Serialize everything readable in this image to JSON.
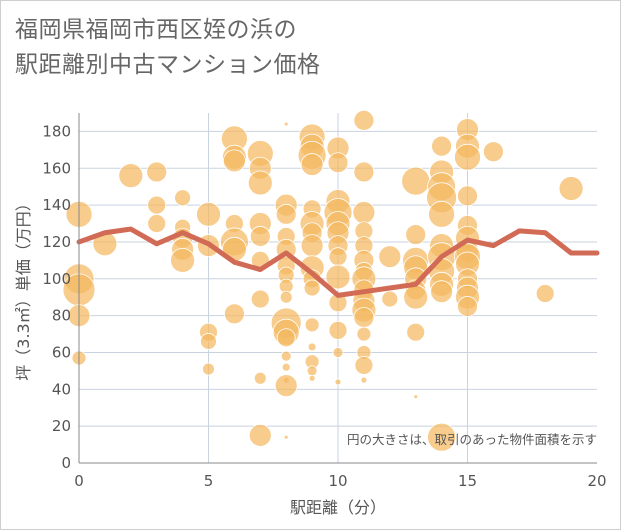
{
  "chart_data": {
    "type": "scatter",
    "title": "福岡県福岡市西区姪の浜の\n駅距離別中古マンション価格",
    "xlabel": "駅距離（分）",
    "ylabel": "坪（3.3㎡）単価（万円）",
    "xlim": [
      0,
      20
    ],
    "ylim": [
      0,
      190
    ],
    "xticks": [
      0,
      5,
      10,
      15,
      20
    ],
    "yticks": [
      0,
      20,
      40,
      60,
      80,
      100,
      120,
      140,
      160,
      180
    ],
    "grid": true,
    "annotation": "円の大きさは、取引のあった物件面積を示す",
    "colors": {
      "bubble": "#f4b95f",
      "line": "#d26b55",
      "grid": "#c9d3e0"
    },
    "trend_line": {
      "x": [
        0,
        1,
        2,
        3,
        4,
        5,
        6,
        7,
        8,
        9,
        10,
        11,
        12,
        13,
        14,
        15,
        16,
        17,
        18,
        19,
        20
      ],
      "y": [
        120,
        125,
        127,
        119,
        125,
        119,
        109,
        105,
        114,
        103,
        91,
        93,
        95,
        97,
        112,
        121,
        118,
        126,
        125,
        114,
        114
      ]
    },
    "points": [
      {
        "x": 0,
        "y": 135,
        "s": 13
      },
      {
        "x": 0,
        "y": 100,
        "s": 15
      },
      {
        "x": 0,
        "y": 94,
        "s": 16
      },
      {
        "x": 0,
        "y": 80,
        "s": 11
      },
      {
        "x": 0,
        "y": 57,
        "s": 7
      },
      {
        "x": 1,
        "y": 119,
        "s": 12
      },
      {
        "x": 2,
        "y": 156,
        "s": 12
      },
      {
        "x": 3,
        "y": 158,
        "s": 10
      },
      {
        "x": 3,
        "y": 140,
        "s": 9
      },
      {
        "x": 3,
        "y": 130,
        "s": 9
      },
      {
        "x": 4,
        "y": 144,
        "s": 8
      },
      {
        "x": 4,
        "y": 128,
        "s": 8
      },
      {
        "x": 4,
        "y": 122,
        "s": 10
      },
      {
        "x": 4,
        "y": 116,
        "s": 11
      },
      {
        "x": 4,
        "y": 110,
        "s": 12
      },
      {
        "x": 5,
        "y": 135,
        "s": 12
      },
      {
        "x": 5,
        "y": 118,
        "s": 11
      },
      {
        "x": 5,
        "y": 71,
        "s": 9
      },
      {
        "x": 5,
        "y": 66,
        "s": 8
      },
      {
        "x": 5,
        "y": 51,
        "s": 6
      },
      {
        "x": 6,
        "y": 176,
        "s": 13
      },
      {
        "x": 6,
        "y": 166,
        "s": 12
      },
      {
        "x": 6,
        "y": 164,
        "s": 11
      },
      {
        "x": 6,
        "y": 130,
        "s": 9
      },
      {
        "x": 6,
        "y": 120,
        "s": 14
      },
      {
        "x": 6,
        "y": 116,
        "s": 12
      },
      {
        "x": 6,
        "y": 81,
        "s": 10
      },
      {
        "x": 7,
        "y": 168,
        "s": 13
      },
      {
        "x": 7,
        "y": 160,
        "s": 11
      },
      {
        "x": 7,
        "y": 152,
        "s": 12
      },
      {
        "x": 7,
        "y": 130,
        "s": 11
      },
      {
        "x": 7,
        "y": 123,
        "s": 10
      },
      {
        "x": 7,
        "y": 110,
        "s": 9
      },
      {
        "x": 7,
        "y": 89,
        "s": 9
      },
      {
        "x": 7,
        "y": 46,
        "s": 6
      },
      {
        "x": 7,
        "y": 15,
        "s": 11
      },
      {
        "x": 8,
        "y": 184,
        "s": 2
      },
      {
        "x": 8,
        "y": 140,
        "s": 11
      },
      {
        "x": 8,
        "y": 135,
        "s": 10
      },
      {
        "x": 8,
        "y": 123,
        "s": 9
      },
      {
        "x": 8,
        "y": 116,
        "s": 10
      },
      {
        "x": 8,
        "y": 107,
        "s": 9
      },
      {
        "x": 8,
        "y": 102,
        "s": 8
      },
      {
        "x": 8,
        "y": 96,
        "s": 7
      },
      {
        "x": 8,
        "y": 90,
        "s": 6
      },
      {
        "x": 8,
        "y": 76,
        "s": 15
      },
      {
        "x": 8,
        "y": 71,
        "s": 13
      },
      {
        "x": 8,
        "y": 68,
        "s": 9
      },
      {
        "x": 8,
        "y": 58,
        "s": 5
      },
      {
        "x": 8,
        "y": 52,
        "s": 4
      },
      {
        "x": 8,
        "y": 45,
        "s": 3
      },
      {
        "x": 8,
        "y": 42,
        "s": 11
      },
      {
        "x": 8,
        "y": 14,
        "s": 2
      },
      {
        "x": 9,
        "y": 177,
        "s": 13
      },
      {
        "x": 9,
        "y": 172,
        "s": 12
      },
      {
        "x": 9,
        "y": 167,
        "s": 14
      },
      {
        "x": 9,
        "y": 162,
        "s": 11
      },
      {
        "x": 9,
        "y": 138,
        "s": 9
      },
      {
        "x": 9,
        "y": 130,
        "s": 12
      },
      {
        "x": 9,
        "y": 125,
        "s": 10
      },
      {
        "x": 9,
        "y": 118,
        "s": 11
      },
      {
        "x": 9,
        "y": 106,
        "s": 12
      },
      {
        "x": 9,
        "y": 100,
        "s": 9
      },
      {
        "x": 9,
        "y": 95,
        "s": 8
      },
      {
        "x": 9,
        "y": 75,
        "s": 7
      },
      {
        "x": 9,
        "y": 63,
        "s": 4
      },
      {
        "x": 9,
        "y": 55,
        "s": 7
      },
      {
        "x": 9,
        "y": 50,
        "s": 5
      },
      {
        "x": 9,
        "y": 46,
        "s": 3
      },
      {
        "x": 10,
        "y": 171,
        "s": 11
      },
      {
        "x": 10,
        "y": 163,
        "s": 10
      },
      {
        "x": 10,
        "y": 142,
        "s": 12
      },
      {
        "x": 10,
        "y": 136,
        "s": 14
      },
      {
        "x": 10,
        "y": 130,
        "s": 12
      },
      {
        "x": 10,
        "y": 125,
        "s": 11
      },
      {
        "x": 10,
        "y": 118,
        "s": 10
      },
      {
        "x": 10,
        "y": 112,
        "s": 9
      },
      {
        "x": 10,
        "y": 101,
        "s": 12
      },
      {
        "x": 10,
        "y": 87,
        "s": 9
      },
      {
        "x": 10,
        "y": 72,
        "s": 9
      },
      {
        "x": 10,
        "y": 60,
        "s": 5
      },
      {
        "x": 10,
        "y": 44,
        "s": 3
      },
      {
        "x": 11,
        "y": 186,
        "s": 10
      },
      {
        "x": 11,
        "y": 158,
        "s": 10
      },
      {
        "x": 11,
        "y": 136,
        "s": 11
      },
      {
        "x": 11,
        "y": 126,
        "s": 9
      },
      {
        "x": 11,
        "y": 118,
        "s": 9
      },
      {
        "x": 11,
        "y": 110,
        "s": 10
      },
      {
        "x": 11,
        "y": 104,
        "s": 9
      },
      {
        "x": 11,
        "y": 100,
        "s": 12
      },
      {
        "x": 11,
        "y": 94,
        "s": 10
      },
      {
        "x": 11,
        "y": 88,
        "s": 11
      },
      {
        "x": 11,
        "y": 83,
        "s": 12
      },
      {
        "x": 11,
        "y": 79,
        "s": 10
      },
      {
        "x": 11,
        "y": 70,
        "s": 7
      },
      {
        "x": 11,
        "y": 60,
        "s": 7
      },
      {
        "x": 11,
        "y": 53,
        "s": 9
      },
      {
        "x": 11,
        "y": 45,
        "s": 3
      },
      {
        "x": 12,
        "y": 112,
        "s": 11
      },
      {
        "x": 12,
        "y": 89,
        "s": 8
      },
      {
        "x": 13,
        "y": 153,
        "s": 14
      },
      {
        "x": 13,
        "y": 124,
        "s": 10
      },
      {
        "x": 13,
        "y": 110,
        "s": 13
      },
      {
        "x": 13,
        "y": 106,
        "s": 12
      },
      {
        "x": 13,
        "y": 100,
        "s": 11
      },
      {
        "x": 13,
        "y": 94,
        "s": 10
      },
      {
        "x": 13,
        "y": 90,
        "s": 12
      },
      {
        "x": 13,
        "y": 71,
        "s": 9
      },
      {
        "x": 13,
        "y": 36,
        "s": 2
      },
      {
        "x": 14,
        "y": 172,
        "s": 10
      },
      {
        "x": 14,
        "y": 158,
        "s": 12
      },
      {
        "x": 14,
        "y": 150,
        "s": 14
      },
      {
        "x": 14,
        "y": 144,
        "s": 15
      },
      {
        "x": 14,
        "y": 135,
        "s": 13
      },
      {
        "x": 14,
        "y": 118,
        "s": 12
      },
      {
        "x": 14,
        "y": 112,
        "s": 14
      },
      {
        "x": 14,
        "y": 104,
        "s": 13
      },
      {
        "x": 14,
        "y": 97,
        "s": 12
      },
      {
        "x": 14,
        "y": 93,
        "s": 11
      },
      {
        "x": 14,
        "y": 14,
        "s": 14
      },
      {
        "x": 15,
        "y": 181,
        "s": 11
      },
      {
        "x": 15,
        "y": 172,
        "s": 12
      },
      {
        "x": 15,
        "y": 166,
        "s": 13
      },
      {
        "x": 15,
        "y": 145,
        "s": 10
      },
      {
        "x": 15,
        "y": 129,
        "s": 10
      },
      {
        "x": 15,
        "y": 122,
        "s": 12
      },
      {
        "x": 15,
        "y": 115,
        "s": 11
      },
      {
        "x": 15,
        "y": 112,
        "s": 13
      },
      {
        "x": 15,
        "y": 108,
        "s": 12
      },
      {
        "x": 15,
        "y": 100,
        "s": 10
      },
      {
        "x": 15,
        "y": 95,
        "s": 11
      },
      {
        "x": 15,
        "y": 90,
        "s": 12
      },
      {
        "x": 15,
        "y": 85,
        "s": 10
      },
      {
        "x": 16,
        "y": 169,
        "s": 10
      },
      {
        "x": 18,
        "y": 92,
        "s": 9
      },
      {
        "x": 19,
        "y": 149,
        "s": 12
      }
    ]
  }
}
